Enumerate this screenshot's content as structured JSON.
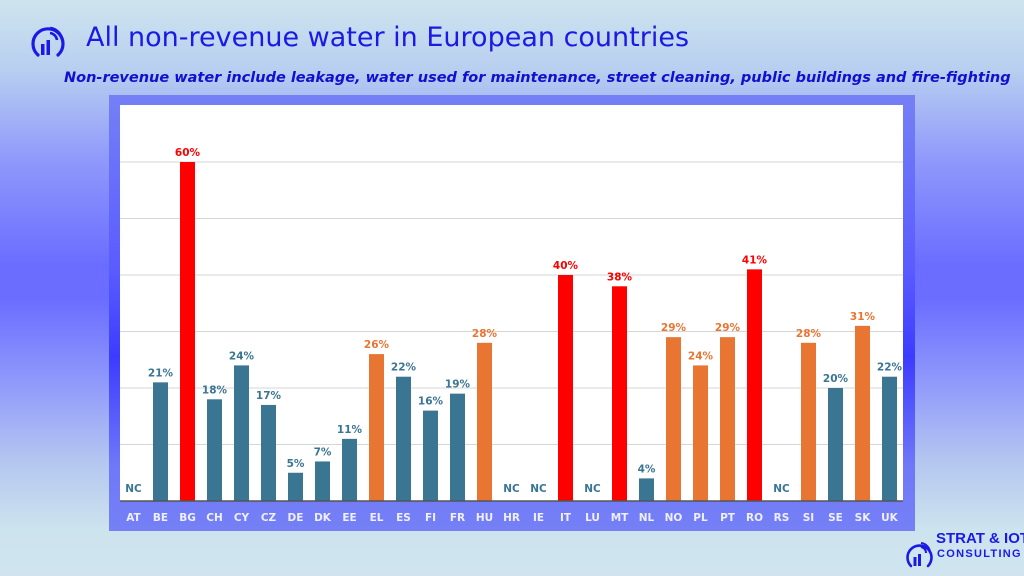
{
  "header": {
    "title": "All non-revenue water in European countries",
    "subtitle": "Non-revenue water include leakage, water used for maintenance, street cleaning, public buildings and fire-fighting",
    "logo_icon": "signal-chart-icon"
  },
  "brand": {
    "line1": "STRAT & IOT",
    "line2": "CONSULTING",
    "logo_icon": "signal-chart-icon"
  },
  "colors": {
    "title": "#1a1ae6",
    "low": "#3a7592",
    "medium": "#e97532",
    "high": "#ff0000",
    "axis_band": "#7580f5"
  },
  "chart_data": {
    "type": "bar",
    "title": "All non-revenue water in European countries",
    "xlabel": "",
    "ylabel": "",
    "ylim": [
      0,
      70
    ],
    "grid": true,
    "legend": "none",
    "categories": [
      "AT",
      "BE",
      "BG",
      "CH",
      "CY",
      "CZ",
      "DE",
      "DK",
      "EE",
      "EL",
      "ES",
      "FI",
      "FR",
      "HU",
      "HR",
      "IE",
      "IT",
      "LU",
      "MT",
      "NL",
      "NO",
      "PL",
      "PT",
      "RO",
      "RS",
      "SI",
      "SE",
      "SK",
      "UK"
    ],
    "values": [
      null,
      21,
      60,
      18,
      24,
      17,
      5,
      7,
      11,
      26,
      22,
      16,
      19,
      28,
      null,
      null,
      40,
      null,
      38,
      4,
      29,
      24,
      29,
      41,
      null,
      28,
      20,
      31,
      22
    ],
    "labels": [
      "NC",
      "21%",
      "60%",
      "18%",
      "24%",
      "17%",
      "5%",
      "7%",
      "11%",
      "26%",
      "22%",
      "16%",
      "19%",
      "28%",
      "NC",
      "NC",
      "40%",
      "NC",
      "38%",
      "4%",
      "29%",
      "24%",
      "29%",
      "41%",
      "NC",
      "28%",
      "20%",
      "31%",
      "22%"
    ],
    "level": [
      "none",
      "low",
      "high",
      "low",
      "low",
      "low",
      "low",
      "low",
      "low",
      "medium",
      "low",
      "low",
      "low",
      "medium",
      "none",
      "none",
      "high",
      "none",
      "high",
      "low",
      "medium",
      "medium",
      "medium",
      "high",
      "none",
      "medium",
      "low",
      "medium",
      "low"
    ],
    "not_communicated_label": "NC"
  }
}
